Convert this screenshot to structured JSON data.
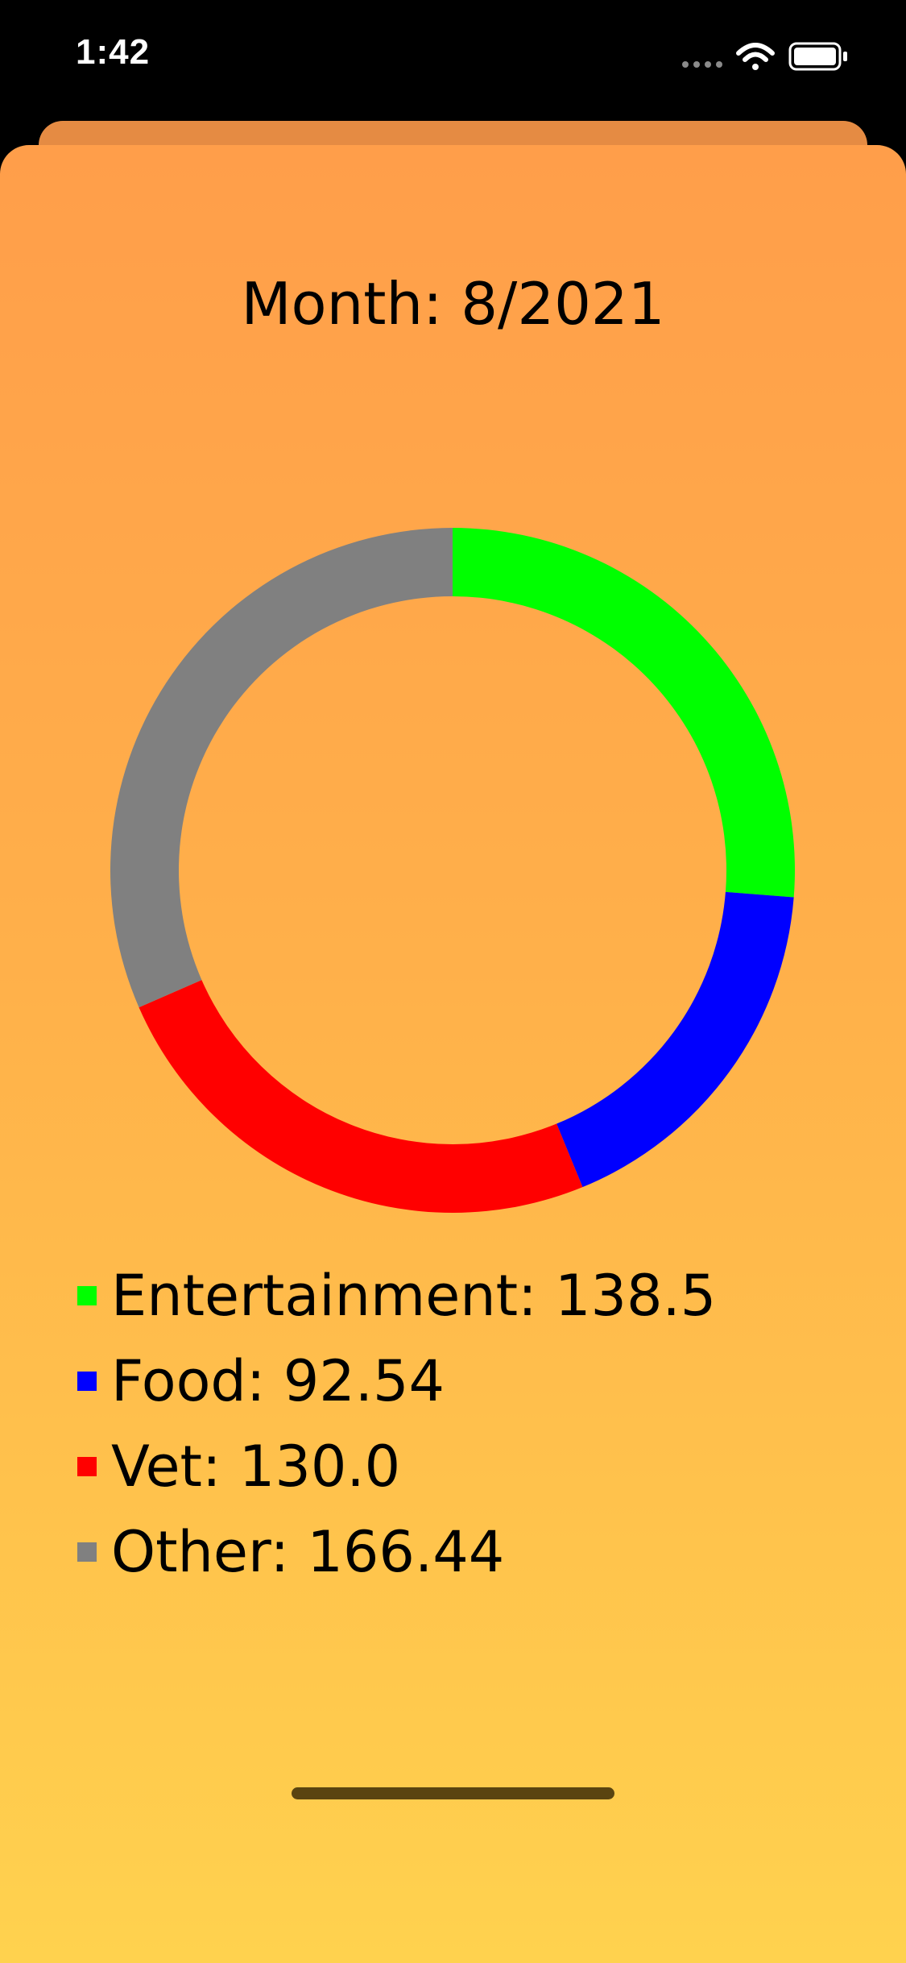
{
  "status_bar": {
    "time": "1:42",
    "icons": [
      "signal-dots-icon",
      "wifi-icon",
      "battery-icon"
    ]
  },
  "header": {
    "title": "Month: 8/2021"
  },
  "colors": {
    "background_top": "#ff9e4a",
    "background_bottom": "#ffd24e",
    "back_sheet": "#e58b43"
  },
  "chart_data": {
    "type": "pie",
    "style": "donut",
    "categories": [
      "Entertainment",
      "Food",
      "Vet",
      "Other"
    ],
    "values": [
      138.5,
      92.54,
      130.0,
      166.44
    ],
    "colors": [
      "#00ff00",
      "#0000ff",
      "#ff0000",
      "#808080"
    ],
    "legend_placement": "bottom"
  },
  "legend": {
    "items": [
      {
        "text": "Entertainment: 138.5",
        "color": "#00ff00"
      },
      {
        "text": "Food: 92.54",
        "color": "#0000ff"
      },
      {
        "text": "Vet: 130.0",
        "color": "#ff0000"
      },
      {
        "text": "Other: 166.44",
        "color": "#808080"
      }
    ]
  }
}
